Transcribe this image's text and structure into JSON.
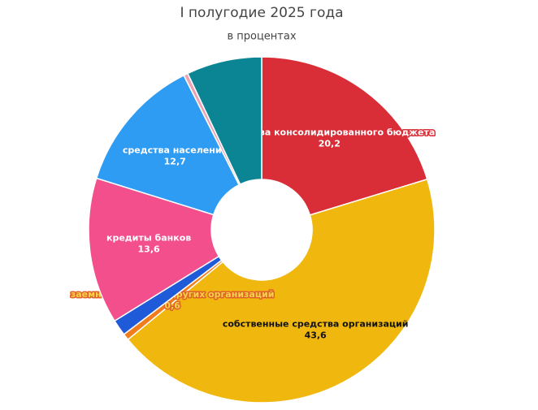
{
  "chart_data": {
    "type": "donut",
    "title": "I полугодие 2025 года",
    "subtitle": "в процентах",
    "categories": [
      "средства консолидированного бюджета",
      "собственные средства организаций",
      "заемные средства других организаций",
      null,
      "кредиты банков",
      "средства населения",
      null,
      null
    ],
    "values": [
      20.2,
      43.6,
      0.6,
      1.5,
      13.6,
      12.7,
      0.4,
      7.0
    ],
    "value_labels": [
      "20,2",
      "43,6",
      "0,6",
      null,
      "13,6",
      "12,7",
      null,
      null
    ],
    "colors": [
      "#d92d38",
      "#f0b80f",
      "#f07c1c",
      "#1f5ad8",
      "#f24f8c",
      "#2f9cf4",
      "#e9a3b5",
      "#0b8494"
    ]
  }
}
